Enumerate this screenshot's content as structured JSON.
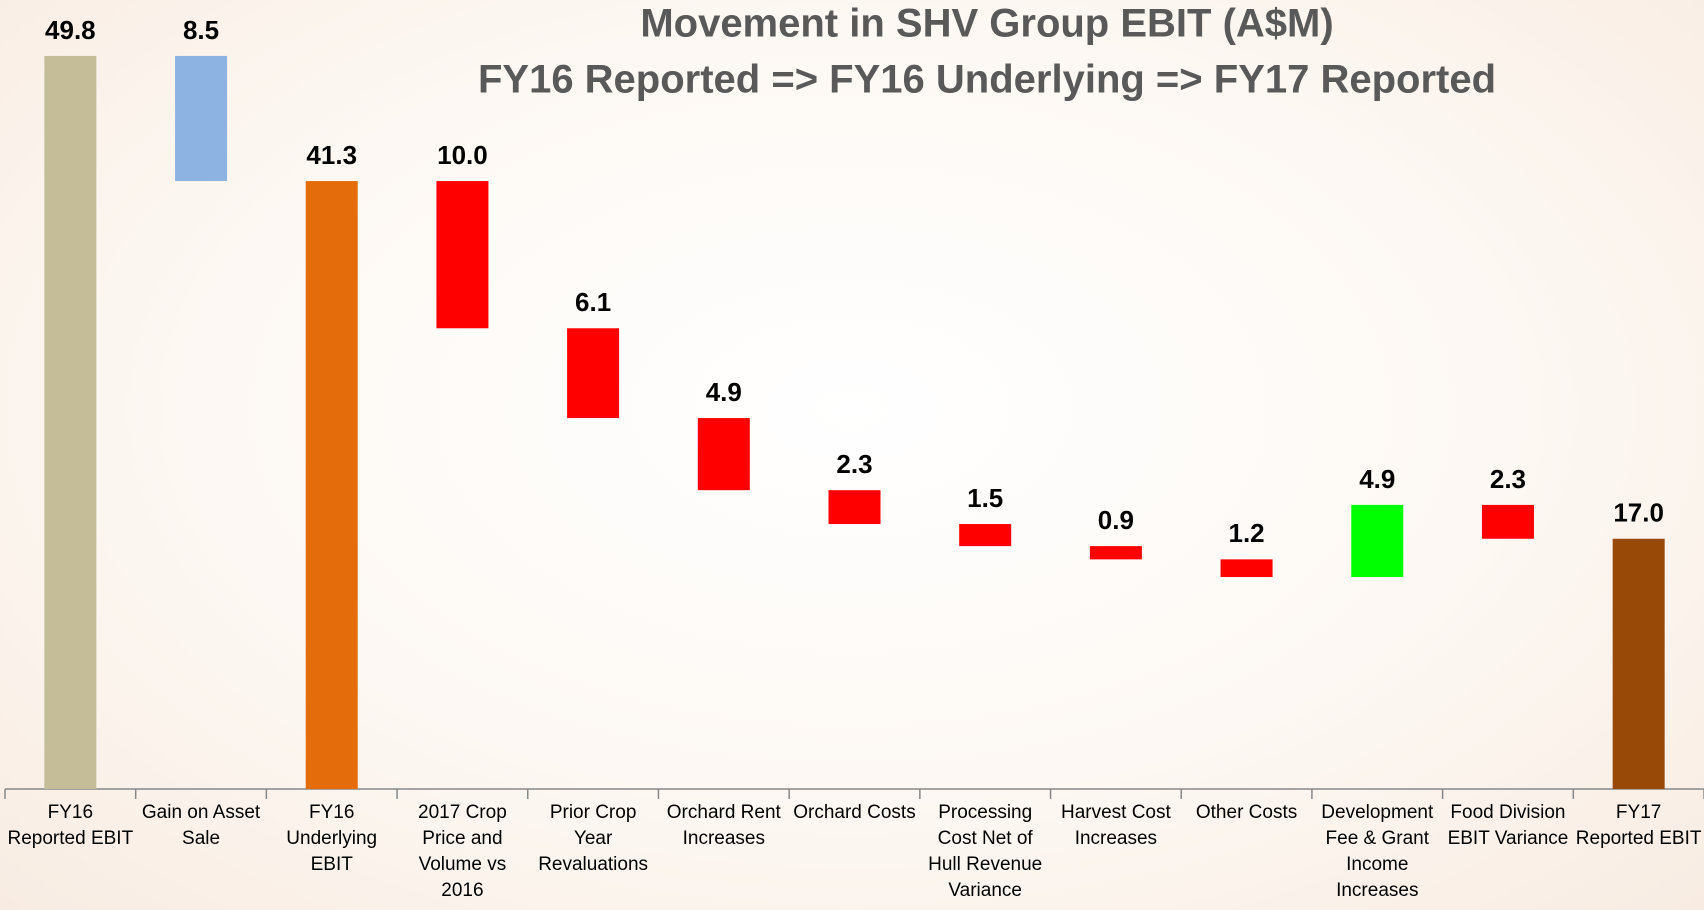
{
  "chart_data": {
    "type": "waterfall",
    "title": "Movement in SHV Group EBIT (A$M)",
    "subtitle": "FY16 Reported => FY16 Underlying => FY17 Reported",
    "categories": [
      "FY16 Reported EBIT",
      "Gain on Asset Sale",
      "FY16 Underlying EBIT",
      "2017 Crop Price and Volume vs 2016",
      "Prior Crop Year Revaluations",
      "Orchard Rent Increases",
      "Orchard Costs",
      "Processing Cost Net of Hull Revenue Variance",
      "Harvest Cost Increases",
      "Other Costs",
      "Development Fee & Grant Income Increases",
      "Food Division EBIT Variance",
      "FY17 Reported EBIT"
    ],
    "values": [
      49.8,
      8.5,
      41.3,
      10.0,
      6.1,
      4.9,
      2.3,
      1.5,
      0.9,
      1.2,
      4.9,
      2.3,
      17.0
    ],
    "value_labels": [
      "49.8",
      "8.5",
      "41.3",
      "10.0",
      "6.1",
      "4.9",
      "2.3",
      "1.5",
      "0.9",
      "1.2",
      "4.9",
      "2.3",
      "17.0"
    ],
    "measures": [
      "total",
      "decrease",
      "total",
      "decrease",
      "decrease",
      "decrease",
      "decrease",
      "decrease",
      "decrease",
      "decrease",
      "increase",
      "decrease",
      "total"
    ],
    "colors": [
      "#c4bd97",
      "#8db3e2",
      "#e46c0a",
      "#ff0000",
      "#ff0000",
      "#ff0000",
      "#ff0000",
      "#ff0000",
      "#ff0000",
      "#ff0000",
      "#00ff00",
      "#ff0000",
      "#984807"
    ],
    "ylim": [
      0,
      50
    ]
  }
}
